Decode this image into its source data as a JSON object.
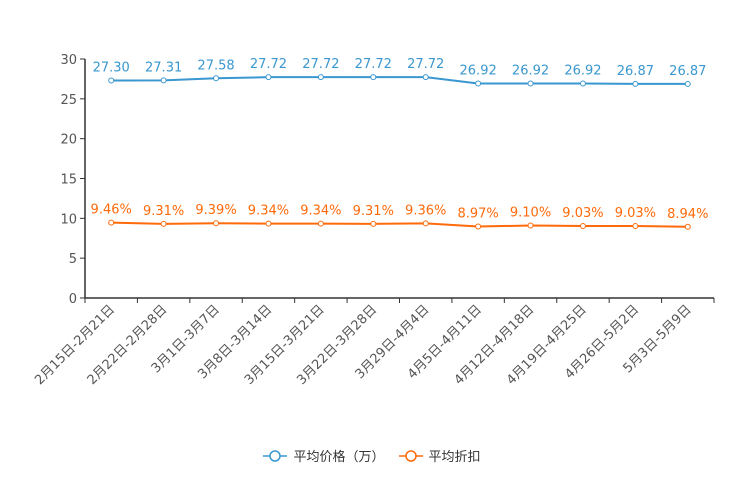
{
  "chart_data": {
    "type": "line",
    "categories": [
      "2月15日-2月21日",
      "2月22日-2月28日",
      "3月1日-3月7日",
      "3月8日-3月14日",
      "3月15日-3月21日",
      "3月22日-3月28日",
      "3月29日-4月4日",
      "4月5日-4月11日",
      "4月12日-4月18日",
      "4月19日-4月25日",
      "4月26日-5月2日",
      "5月3日-5月9日"
    ],
    "series": [
      {
        "name": "平均价格（万）",
        "color": "#3a97cf",
        "values": [
          27.3,
          27.31,
          27.58,
          27.72,
          27.72,
          27.72,
          27.72,
          26.92,
          26.92,
          26.92,
          26.87,
          26.87
        ],
        "labels": [
          "27.30",
          "27.31",
          "27.58",
          "27.72",
          "27.72",
          "27.72",
          "27.72",
          "26.92",
          "26.92",
          "26.92",
          "26.87",
          "26.87"
        ]
      },
      {
        "name": "平均折扣",
        "color": "#ff6a0a",
        "values": [
          9.46,
          9.31,
          9.39,
          9.34,
          9.34,
          9.31,
          9.36,
          8.97,
          9.1,
          9.03,
          9.03,
          8.94
        ],
        "labels": [
          "9.46%",
          "9.31%",
          "9.39%",
          "9.34%",
          "9.34%",
          "9.31%",
          "9.36%",
          "8.97%",
          "9.10%",
          "9.03%",
          "9.03%",
          "8.94%"
        ]
      }
    ],
    "ylim": [
      0,
      30
    ],
    "yticks": [
      "0",
      "5",
      "10",
      "15",
      "20",
      "25",
      "30"
    ],
    "legend": "bottom-center"
  }
}
